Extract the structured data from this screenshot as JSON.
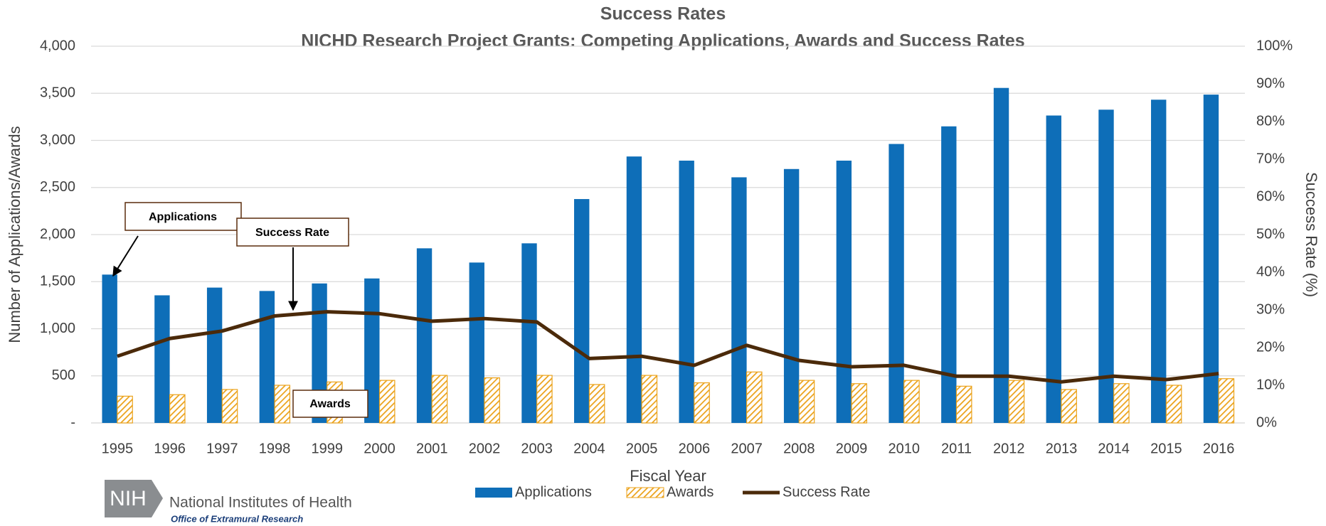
{
  "chart_data": {
    "type": "bar-line",
    "title": "Success Rates",
    "subtitle": "NICHD Research Project Grants:  Competing Applications, Awards and Success Rates",
    "x_label": "Fiscal Year",
    "y_label": "Number of Applications/Awards",
    "y2_label": "Success Rate (%)",
    "categories": [
      "1995",
      "1996",
      "1997",
      "1998",
      "1999",
      "2000",
      "2001",
      "2002",
      "2003",
      "2004",
      "2005",
      "2006",
      "2007",
      "2008",
      "2009",
      "2010",
      "2011",
      "2012",
      "2013",
      "2014",
      "2015",
      "2016"
    ],
    "series": [
      {
        "name": "Applications",
        "type": "bar",
        "color": "#0E6EB8",
        "values": [
          1575,
          1355,
          1437,
          1401,
          1481,
          1534,
          1854,
          1703,
          1907,
          2377,
          2829,
          2785,
          2608,
          2696,
          2785,
          2962,
          3149,
          3557,
          3264,
          3326,
          3432,
          3486
        ]
      },
      {
        "name": "Awards",
        "type": "bar",
        "pattern": "hatch",
        "color": "#EBA21A",
        "values": [
          284,
          300,
          355,
          400,
          435,
          452,
          505,
          479,
          505,
          408,
          505,
          426,
          541,
          452,
          417,
          452,
          390,
          452,
          355,
          417,
          400,
          470
        ]
      },
      {
        "name": "Success Rate",
        "type": "line",
        "axis": "y2",
        "color": "#4B2A0A",
        "values": [
          17.7,
          22.4,
          24.4,
          28.4,
          29.5,
          29.0,
          27.0,
          27.7,
          26.8,
          17.1,
          17.7,
          15.3,
          20.6,
          16.6,
          14.9,
          15.3,
          12.4,
          12.4,
          10.9,
          12.4,
          11.5,
          13.1
        ]
      }
    ],
    "ylim": [
      0,
      4000
    ],
    "yticks": [
      {
        "value": 0,
        "label": "-"
      },
      500,
      {
        "value": 1000,
        "label": "1,000"
      },
      {
        "value": 1500,
        "label": "1,500"
      },
      {
        "value": 2000,
        "label": "2,000"
      },
      {
        "value": 2500,
        "label": "2,500"
      },
      {
        "value": 3000,
        "label": "3,000"
      },
      {
        "value": 3500,
        "label": "3,500"
      },
      {
        "value": 4000,
        "label": "4,000"
      }
    ],
    "y2lim": [
      0,
      100
    ],
    "y2ticks": [
      {
        "value": 0,
        "label": "0%"
      },
      {
        "value": 10,
        "label": "10%"
      },
      {
        "value": 20,
        "label": "20%"
      },
      {
        "value": 30,
        "label": "30%"
      },
      {
        "value": 40,
        "label": "40%"
      },
      {
        "value": 50,
        "label": "50%"
      },
      {
        "value": 60,
        "label": "60%"
      },
      {
        "value": 70,
        "label": "70%"
      },
      {
        "value": 80,
        "label": "80%"
      },
      {
        "value": 90,
        "label": "90%"
      },
      {
        "value": 100,
        "label": "100%"
      }
    ],
    "grid": true,
    "legend": "bottom",
    "annotations": [
      "Applications",
      "Success Rate",
      "Awards"
    ]
  },
  "logo": {
    "mark": "NIH",
    "name": "National Institutes of Health",
    "office": "Office of Extramural Research"
  }
}
